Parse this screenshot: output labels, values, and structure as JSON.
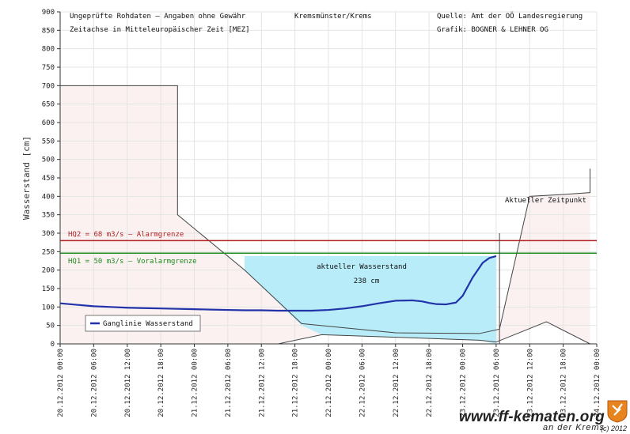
{
  "header": {
    "left_line1": "Ungeprüfte Rohdaten – Angaben ohne Gewähr",
    "left_line2": "Zeitachse in Mitteleuropäischer Zeit [MEZ]",
    "station": "Kremsmünster/Krems",
    "right_line1": "Quelle: Amt der OÖ Landesregierung",
    "right_line2": "Grafik: BOGNER & LEHNER OG"
  },
  "watermark": {
    "site": "www.ff-kematen.org",
    "sub": "an der Krems",
    "copyright": "(c) 2012"
  },
  "chart_data": {
    "type": "line",
    "ylabel": "Wasserstand [cm]",
    "ylim": [
      0,
      900
    ],
    "yticks": [
      0,
      50,
      100,
      150,
      200,
      250,
      300,
      350,
      400,
      450,
      500,
      550,
      600,
      650,
      700,
      750,
      800,
      850,
      900
    ],
    "xlim": [
      0,
      16
    ],
    "x_ticks": [
      "20.12.2012 00:00",
      "20.12.2012 06:00",
      "20.12.2012 12:00",
      "20.12.2012 18:00",
      "21.12.2012 00:00",
      "21.12.2012 06:00",
      "21.12.2012 12:00",
      "21.12.2012 18:00",
      "22.12.2012 00:00",
      "22.12.2012 06:00",
      "22.12.2012 12:00",
      "22.12.2012 18:00",
      "23.12.2012 00:00",
      "23.12.2012 06:00",
      "23.12.2012 12:00",
      "23.12.2012 18:00",
      "24.12.2012 00:00"
    ],
    "grid": true,
    "thresholds": [
      {
        "label": "HQ2 = 68 m3/s – Alarmgrenze",
        "value": 280,
        "color": "#b22222"
      },
      {
        "label": "HQ1 = 50 m3/s – Voralarmgrenze",
        "value": 246,
        "color": "#1e8c1e"
      }
    ],
    "annotations": {
      "current_level_title": "aktueller Wasserstand",
      "current_level_value": "238 cm",
      "current_time": "Aktueller Zeitpunkt"
    },
    "series": [
      {
        "name": "Ganglinie Wasserstand",
        "color": "#2233aa",
        "x": [
          0,
          0.5,
          1,
          1.5,
          2,
          2.5,
          3,
          3.5,
          4,
          4.5,
          5,
          5.5,
          6,
          6.5,
          7,
          7.5,
          8,
          8.5,
          9,
          9.5,
          10,
          10.5,
          10.8,
          11,
          11.2,
          11.5,
          11.8,
          12,
          12.3,
          12.6,
          12.8,
          13
        ],
        "y": [
          110,
          106,
          102,
          100,
          98,
          97,
          96,
          95,
          94,
          93,
          92,
          91,
          91,
          90,
          90,
          90,
          92,
          96,
          102,
          110,
          117,
          118,
          115,
          111,
          108,
          107,
          112,
          130,
          180,
          220,
          233,
          238
        ]
      }
    ],
    "envelope_upper": {
      "x": [
        0,
        3.5,
        3.5,
        5.5,
        7.2,
        10,
        12.5,
        13.1,
        14,
        15,
        15.8,
        15.8
      ],
      "y": [
        700,
        700,
        350,
        200,
        55,
        30,
        28,
        40,
        400,
        405,
        410,
        475
      ]
    },
    "envelope_lower": {
      "x": [
        0,
        6.5,
        7.8,
        10,
        12.5,
        13,
        14.5,
        15.8
      ],
      "y": [
        0,
        0,
        25,
        18,
        10,
        5,
        60,
        0
      ]
    },
    "legend": "bottom-left"
  }
}
